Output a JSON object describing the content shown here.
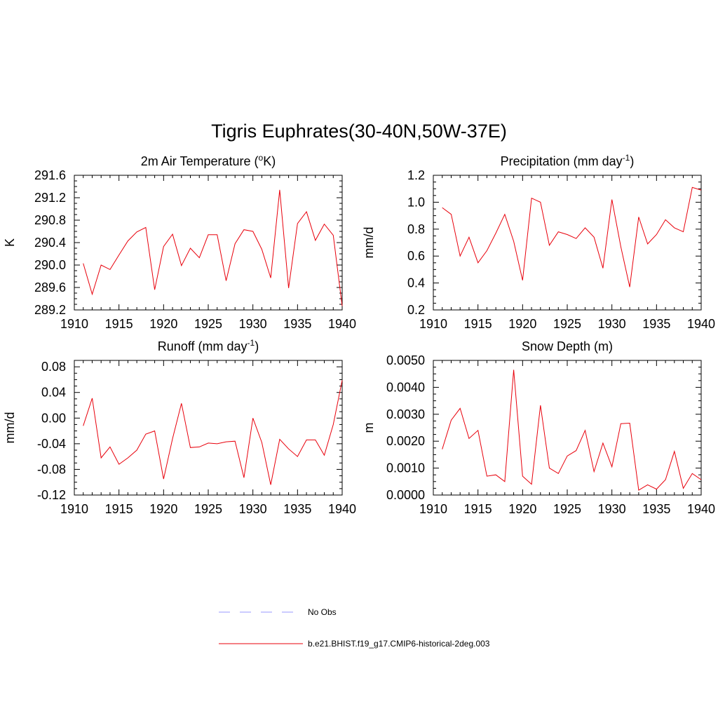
{
  "figure": {
    "title": "Tigris Euphrates(30-40N,50W-37E)"
  },
  "colors": {
    "model_line": "#e8000b",
    "obs_line": "#9a9aff",
    "axis": "#000000"
  },
  "legend": {
    "placement": "bottom-center",
    "entries": [
      {
        "label": "No Obs",
        "style": "dashed",
        "color": "#9a9aff"
      },
      {
        "label": "b.e21.BHIST.f19_g17.CMIP6-historical-2deg.003",
        "style": "solid",
        "color": "#e8000b"
      }
    ]
  },
  "chart_data": [
    {
      "type": "line",
      "title": "2m Air Temperature (",
      "title_sup": "o",
      "title_end": "K)",
      "ylabel": "K",
      "xlabel": "",
      "xlim": [
        1910,
        1940
      ],
      "ylim": [
        289.2,
        291.6
      ],
      "xticks": [
        "1910",
        "1915",
        "1920",
        "1925",
        "1930",
        "1935",
        "1940"
      ],
      "yticks": [
        "289.2",
        "289.6",
        "290.0",
        "290.4",
        "290.8",
        "291.2",
        "291.6"
      ],
      "grid": false,
      "series": [
        {
          "x": [
            1911,
            1912,
            1913,
            1914,
            1915,
            1916,
            1917,
            1918,
            1919,
            1920,
            1921,
            1922,
            1923,
            1924,
            1925,
            1926,
            1927,
            1928,
            1929,
            1930,
            1931,
            1932,
            1933,
            1934,
            1935,
            1936,
            1937,
            1938,
            1939,
            1940
          ],
          "values": [
            290.03,
            289.48,
            290.0,
            289.92,
            290.18,
            290.43,
            290.59,
            290.67,
            289.56,
            290.33,
            290.55,
            289.99,
            290.3,
            290.13,
            290.54,
            290.54,
            289.72,
            290.38,
            290.63,
            290.6,
            290.28,
            289.77,
            291.34,
            289.59,
            290.74,
            290.95,
            290.44,
            290.73,
            290.53,
            289.27
          ]
        }
      ]
    },
    {
      "type": "line",
      "title": "Precipitation (mm day",
      "title_sup": "-1",
      "title_end": ")",
      "ylabel": "mm/d",
      "xlabel": "",
      "xlim": [
        1910,
        1940
      ],
      "ylim": [
        0.2,
        1.2
      ],
      "xticks": [
        "1910",
        "1915",
        "1920",
        "1925",
        "1930",
        "1935",
        "1940"
      ],
      "yticks": [
        "0.2",
        "0.4",
        "0.6",
        "0.8",
        "1.0",
        "1.2"
      ],
      "grid": false,
      "series": [
        {
          "x": [
            1911,
            1912,
            1913,
            1914,
            1915,
            1916,
            1917,
            1918,
            1919,
            1920,
            1921,
            1922,
            1923,
            1924,
            1925,
            1926,
            1927,
            1928,
            1929,
            1930,
            1931,
            1932,
            1933,
            1934,
            1935,
            1936,
            1937,
            1938,
            1939,
            1940
          ],
          "values": [
            0.96,
            0.91,
            0.6,
            0.74,
            0.55,
            0.64,
            0.77,
            0.91,
            0.71,
            0.42,
            1.03,
            1.0,
            0.68,
            0.78,
            0.76,
            0.73,
            0.81,
            0.74,
            0.51,
            1.02,
            0.67,
            0.37,
            0.89,
            0.69,
            0.76,
            0.87,
            0.81,
            0.78,
            1.11,
            1.09
          ]
        }
      ]
    },
    {
      "type": "line",
      "title": "Runoff (mm day",
      "title_sup": "-1",
      "title_end": ")",
      "ylabel": "mm/d",
      "xlabel": "",
      "xlim": [
        1910,
        1940
      ],
      "ylim": [
        -0.12,
        0.09
      ],
      "xticks": [
        "1910",
        "1915",
        "1920",
        "1925",
        "1930",
        "1935",
        "1940"
      ],
      "yticks": [
        "-0.12",
        "-0.08",
        "-0.04",
        "0.00",
        "0.04",
        "0.08"
      ],
      "grid": false,
      "series": [
        {
          "x": [
            1911,
            1912,
            1913,
            1914,
            1915,
            1916,
            1917,
            1918,
            1919,
            1920,
            1921,
            1922,
            1923,
            1924,
            1925,
            1926,
            1927,
            1928,
            1929,
            1930,
            1931,
            1932,
            1933,
            1934,
            1935,
            1936,
            1937,
            1938,
            1939,
            1940
          ],
          "values": [
            -0.012,
            0.031,
            -0.062,
            -0.045,
            -0.072,
            -0.062,
            -0.05,
            -0.025,
            -0.02,
            -0.095,
            -0.032,
            0.023,
            -0.046,
            -0.045,
            -0.039,
            -0.04,
            -0.037,
            -0.036,
            -0.093,
            0.0,
            -0.038,
            -0.104,
            -0.033,
            -0.048,
            -0.06,
            -0.034,
            -0.034,
            -0.058,
            -0.01,
            0.059
          ]
        }
      ]
    },
    {
      "type": "line",
      "title": "Snow Depth (m)",
      "title_sup": "",
      "title_end": "",
      "ylabel": "m",
      "xlabel": "",
      "xlim": [
        1910,
        1940
      ],
      "ylim": [
        0.0,
        0.005
      ],
      "xticks": [
        "1910",
        "1915",
        "1920",
        "1925",
        "1930",
        "1935",
        "1940"
      ],
      "yticks": [
        "0.0000",
        "0.0010",
        "0.0020",
        "0.0030",
        "0.0040",
        "0.0050"
      ],
      "grid": false,
      "series": [
        {
          "x": [
            1911,
            1912,
            1913,
            1914,
            1915,
            1916,
            1917,
            1918,
            1919,
            1920,
            1921,
            1922,
            1923,
            1924,
            1925,
            1926,
            1927,
            1928,
            1929,
            1930,
            1931,
            1932,
            1933,
            1934,
            1935,
            1936,
            1937,
            1938,
            1939,
            1940
          ],
          "values": [
            0.0017,
            0.00278,
            0.00322,
            0.0021,
            0.0024,
            0.0007,
            0.00075,
            0.0005,
            0.00465,
            0.0007,
            0.0004,
            0.00333,
            0.001,
            0.0008,
            0.00145,
            0.00165,
            0.0024,
            0.00087,
            0.00193,
            0.00105,
            0.00265,
            0.00267,
            0.00018,
            0.00038,
            0.00022,
            0.00057,
            0.00162,
            0.00025,
            0.0008,
            0.00057
          ]
        }
      ]
    }
  ]
}
